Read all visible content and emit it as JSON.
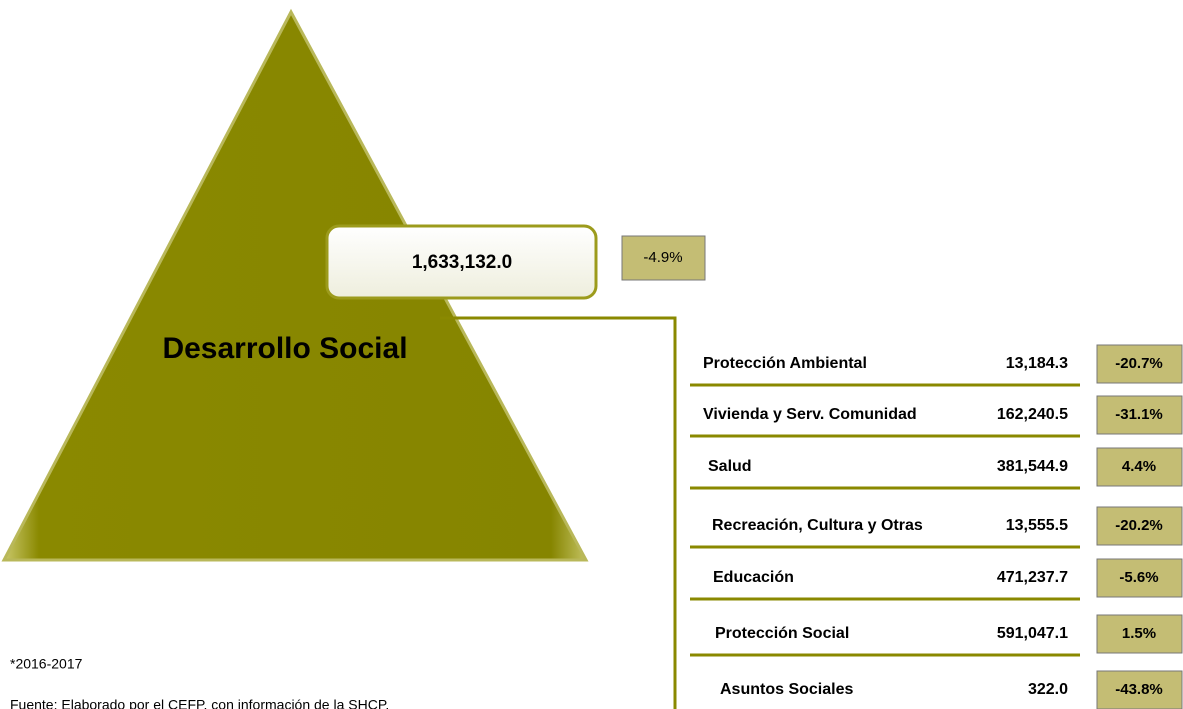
{
  "main": {
    "label": "Desarrollo Social",
    "value": "1,633,132.0",
    "change": "-4.9%"
  },
  "rows": [
    {
      "label": "Protección Ambiental",
      "value": "13,184.3",
      "change": "-20.7%"
    },
    {
      "label": "Vivienda y Serv. Comunidad",
      "value": "162,240.5",
      "change": "-31.1%"
    },
    {
      "label": "Salud",
      "value": "381,544.9",
      "change": "4.4%"
    },
    {
      "label": "Recreación, Cultura y Otras",
      "value": "13,555.5",
      "change": "-20.2%"
    },
    {
      "label": "Educación",
      "value": "471,237.7",
      "change": "-5.6%"
    },
    {
      "label": "Protección Social",
      "value": "591,047.1",
      "change": "1.5%"
    },
    {
      "label": "Asuntos Sociales",
      "value": "322.0",
      "change": "-43.8%"
    }
  ],
  "notes": [
    "*2016-2017",
    "Fuente: Elaborado por el CEFP, con información de la SHCP."
  ]
}
